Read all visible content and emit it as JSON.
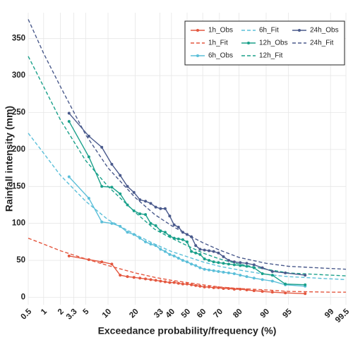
{
  "chart_data": {
    "type": "line",
    "x_label": "Exceedance probability/frequency (%)",
    "y_label": "Rainfall intensity (mm)",
    "xscale": "probit",
    "xlim": [
      0.5,
      99.5
    ],
    "xticks": [
      0.5,
      1,
      2,
      3.3,
      5,
      10,
      20,
      33,
      40,
      50,
      60,
      70,
      80,
      90,
      95,
      99,
      99.5
    ],
    "ylim": [
      -10,
      385
    ],
    "yticks": [
      0,
      50,
      100,
      150,
      200,
      250,
      300,
      350
    ],
    "grid": true,
    "legend": "top-right",
    "series": [
      {
        "name": "1h_Obs",
        "color": "#e4573f",
        "linestyle": "solid",
        "markers": true,
        "x": [
          2.78,
          5.56,
          8.33,
          11.11,
          13.89,
          16.67,
          19.44,
          22.22,
          25,
          27.78,
          30.56,
          33.33,
          36.11,
          38.89,
          41.67,
          44.44,
          47.22,
          50,
          52.78,
          55.56,
          58.33,
          61.11,
          63.89,
          66.67,
          69.44,
          72.22,
          75,
          77.78,
          80.56,
          83.33,
          86.11,
          88.89,
          91.67,
          94.44,
          97.22
        ],
        "values": [
          56,
          51,
          48,
          45,
          30,
          28,
          27,
          26,
          25,
          24,
          23,
          22,
          21,
          20,
          20,
          19,
          18,
          18,
          17,
          16,
          15,
          14,
          14,
          13,
          13,
          12,
          12,
          11,
          11,
          10,
          9,
          8,
          7,
          6,
          5
        ]
      },
      {
        "name": "1h_Fit",
        "color": "#e4573f",
        "linestyle": "dashed",
        "markers": false,
        "x": [
          0.5,
          1,
          2,
          5,
          10,
          20,
          30,
          40,
          50,
          60,
          70,
          80,
          90,
          95,
          99,
          99.5
        ],
        "values": [
          80,
          72,
          63,
          52,
          43,
          33,
          27,
          23,
          20,
          17,
          14,
          12,
          10,
          8,
          7,
          7
        ]
      },
      {
        "name": "6h_Obs",
        "color": "#5bbfd9",
        "linestyle": "solid",
        "markers": true,
        "x": [
          2.78,
          5.56,
          8.33,
          11.11,
          13.89,
          16.67,
          19.44,
          22.22,
          25,
          27.78,
          30.56,
          33.33,
          36.11,
          38.89,
          41.67,
          44.44,
          47.22,
          50,
          52.78,
          55.56,
          58.33,
          61.11,
          63.89,
          66.67,
          69.44,
          72.22,
          75,
          77.78,
          80.56,
          83.33,
          86.11,
          88.89,
          91.67,
          94.44,
          97.22
        ],
        "values": [
          163,
          134,
          102,
          100,
          96,
          88,
          85,
          80,
          75,
          72,
          70,
          65,
          62,
          58,
          56,
          53,
          50,
          48,
          45,
          43,
          40,
          38,
          37,
          36,
          35,
          34,
          33,
          32,
          30,
          28,
          26,
          24,
          22,
          17,
          15
        ]
      },
      {
        "name": "6h_Fit",
        "color": "#5bbfd9",
        "linestyle": "dashed",
        "markers": false,
        "x": [
          0.5,
          1,
          2,
          5,
          10,
          20,
          30,
          40,
          50,
          60,
          70,
          80,
          90,
          95,
          99,
          99.5
        ],
        "values": [
          222,
          195,
          165,
          130,
          105,
          85,
          72,
          62,
          55,
          48,
          42,
          37,
          31,
          28,
          25,
          24
        ]
      },
      {
        "name": "12h_Obs",
        "color": "#1aa08a",
        "linestyle": "solid",
        "markers": true,
        "x": [
          2.78,
          5.56,
          8.33,
          11.11,
          13.89,
          16.67,
          19.44,
          22.22,
          25,
          27.78,
          30.56,
          33.33,
          36.11,
          38.89,
          41.67,
          44.44,
          47.22,
          50,
          52.78,
          55.56,
          58.33,
          61.11,
          63.89,
          66.67,
          69.44,
          72.22,
          75,
          77.78,
          80.56,
          83.33,
          86.11,
          88.89,
          91.67,
          94.44,
          97.22
        ],
        "values": [
          238,
          190,
          150,
          149,
          140,
          125,
          117,
          113,
          112,
          100,
          97,
          90,
          88,
          83,
          80,
          79,
          78,
          75,
          62,
          60,
          58,
          52,
          50,
          48,
          47,
          46,
          45,
          44,
          43,
          42,
          40,
          32,
          30,
          18,
          17
        ]
      },
      {
        "name": "12h_Fit",
        "color": "#1aa08a",
        "linestyle": "dashed",
        "markers": false,
        "x": [
          0.5,
          1,
          2,
          5,
          10,
          20,
          30,
          40,
          50,
          60,
          70,
          80,
          90,
          95,
          99,
          99.5
        ],
        "values": [
          326,
          285,
          240,
          185,
          150,
          115,
          92,
          80,
          70,
          60,
          52,
          45,
          38,
          33,
          30,
          29
        ]
      },
      {
        "name": "24h_Obs",
        "color": "#4a5a8c",
        "linestyle": "solid",
        "markers": true,
        "x": [
          2.78,
          5.56,
          8.33,
          11.11,
          13.89,
          16.67,
          19.44,
          22.22,
          25,
          27.78,
          30.56,
          33.33,
          36.11,
          38.89,
          41.67,
          44.44,
          47.22,
          50,
          52.78,
          55.56,
          58.33,
          61.11,
          63.89,
          66.67,
          69.44,
          72.22,
          75,
          77.78,
          80.56,
          83.33,
          86.11,
          88.89,
          91.67,
          94.44,
          97.22
        ],
        "values": [
          249,
          218,
          203,
          180,
          165,
          150,
          142,
          132,
          130,
          127,
          122,
          120,
          120,
          110,
          98,
          95,
          88,
          85,
          82,
          70,
          65,
          64,
          63,
          62,
          60,
          55,
          50,
          48,
          47,
          46,
          44,
          40,
          35,
          33,
          30
        ]
      },
      {
        "name": "24h_Fit",
        "color": "#4a5a8c",
        "linestyle": "dashed",
        "markers": false,
        "x": [
          0.5,
          1,
          2,
          5,
          10,
          20,
          30,
          40,
          50,
          60,
          70,
          80,
          90,
          95,
          99,
          99.5
        ],
        "values": [
          376,
          330,
          285,
          220,
          175,
          135,
          112,
          97,
          85,
          74,
          64,
          54,
          46,
          42,
          39,
          38
        ]
      }
    ]
  }
}
